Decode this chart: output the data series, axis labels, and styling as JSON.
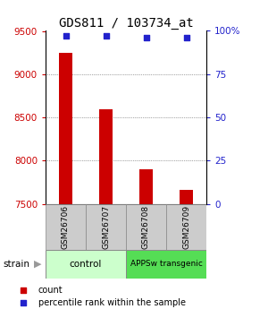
{
  "title": "GDS811 / 103734_at",
  "samples": [
    "GSM26706",
    "GSM26707",
    "GSM26708",
    "GSM26709"
  ],
  "counts": [
    9250,
    8590,
    7900,
    7660
  ],
  "percentiles": [
    97,
    97,
    96,
    96
  ],
  "ylim_left": [
    7500,
    9500
  ],
  "ylim_right": [
    0,
    100
  ],
  "yticks_left": [
    7500,
    8000,
    8500,
    9000,
    9500
  ],
  "yticks_right": [
    0,
    25,
    50,
    75,
    100
  ],
  "ytick_labels_right": [
    "0",
    "25",
    "50",
    "75",
    "100%"
  ],
  "bar_color": "#cc0000",
  "dot_color": "#2222cc",
  "groups": [
    {
      "label": "control",
      "color": "#ccffcc"
    },
    {
      "label": "APPSw transgenic",
      "color": "#55dd55"
    }
  ],
  "strain_label": "strain",
  "legend_count_label": "count",
  "legend_pct_label": "percentile rank within the sample",
  "grid_color": "#555555",
  "tick_color_left": "#cc0000",
  "tick_color_right": "#2222cc"
}
